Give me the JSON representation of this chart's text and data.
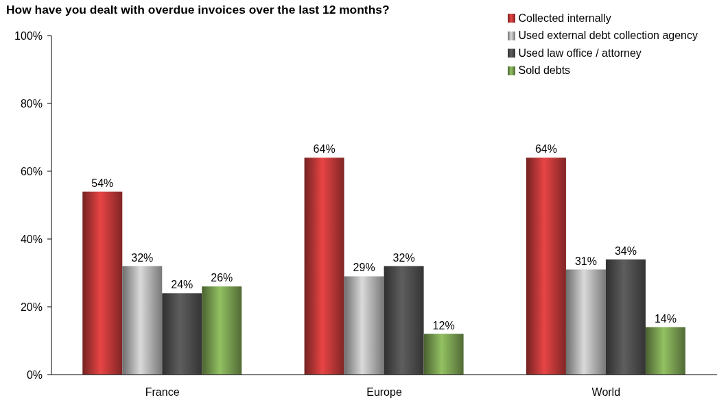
{
  "chart_data": {
    "type": "bar",
    "title": "How have you dealt with overdue invoices over the last 12 months?",
    "categories": [
      "France",
      "Europe",
      "World"
    ],
    "series": [
      {
        "name": "Collected internally",
        "color": "#e84444",
        "values": [
          54,
          64,
          64
        ],
        "value_labels": [
          "54%",
          "64%",
          "64%"
        ]
      },
      {
        "name": "Used external debt collection agency",
        "color": "#dadada",
        "values": [
          32,
          29,
          31
        ],
        "value_labels": [
          "32%",
          "29%",
          "31%"
        ]
      },
      {
        "name": "Used law office / attorney",
        "color": "#5e5e5e",
        "values": [
          24,
          32,
          34
        ],
        "value_labels": [
          "24%",
          "32%",
          "34%"
        ]
      },
      {
        "name": "Sold debts",
        "color": "#93c162",
        "values": [
          26,
          12,
          14
        ],
        "value_labels": [
          "26%",
          "12%",
          "14%"
        ]
      }
    ],
    "ylim": [
      0,
      100
    ],
    "yticks": [
      {
        "value": 0,
        "label": "0%"
      },
      {
        "value": 20,
        "label": "20%"
      },
      {
        "value": 40,
        "label": "40%"
      },
      {
        "value": 60,
        "label": "60%"
      },
      {
        "value": 80,
        "label": "80%"
      },
      {
        "value": 100,
        "label": "100%"
      }
    ],
    "legend": "top right",
    "grid": false
  }
}
